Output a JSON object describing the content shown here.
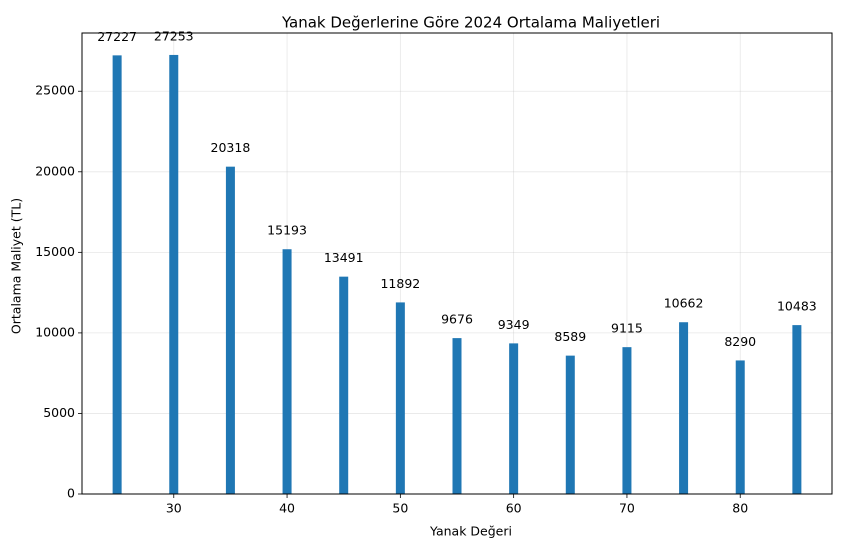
{
  "chart_data": {
    "type": "bar",
    "title": "Yanak Değerlerine Göre 2024 Ortalama Maliyetleri",
    "xlabel": "Yanak Değeri",
    "ylabel": "Ortalama Maliyet (TL)",
    "x": [
      25,
      30,
      35,
      40,
      45,
      50,
      55,
      60,
      65,
      70,
      75,
      80,
      85
    ],
    "values": [
      27227,
      27253,
      20318,
      15193,
      13491,
      11892,
      9676,
      9349,
      8589,
      9115,
      10662,
      8290,
      10483
    ],
    "data_labels": [
      "27227",
      "27253",
      "20318",
      "15193",
      "13491",
      "11892",
      "9676",
      "9349",
      "8589",
      "9115",
      "10662",
      "8290",
      "10483"
    ],
    "xlim": [
      21.9,
      88.1
    ],
    "ylim": [
      0,
      28615
    ],
    "xticks": [
      30,
      40,
      50,
      60,
      70,
      80
    ],
    "xtick_labels": [
      "30",
      "40",
      "50",
      "60",
      "70",
      "80"
    ],
    "yticks": [
      0,
      5000,
      10000,
      15000,
      20000,
      25000
    ],
    "ytick_labels": [
      "0",
      "5000",
      "10000",
      "15000",
      "20000",
      "25000"
    ],
    "grid": true,
    "bar_color": "#1f77b4"
  }
}
